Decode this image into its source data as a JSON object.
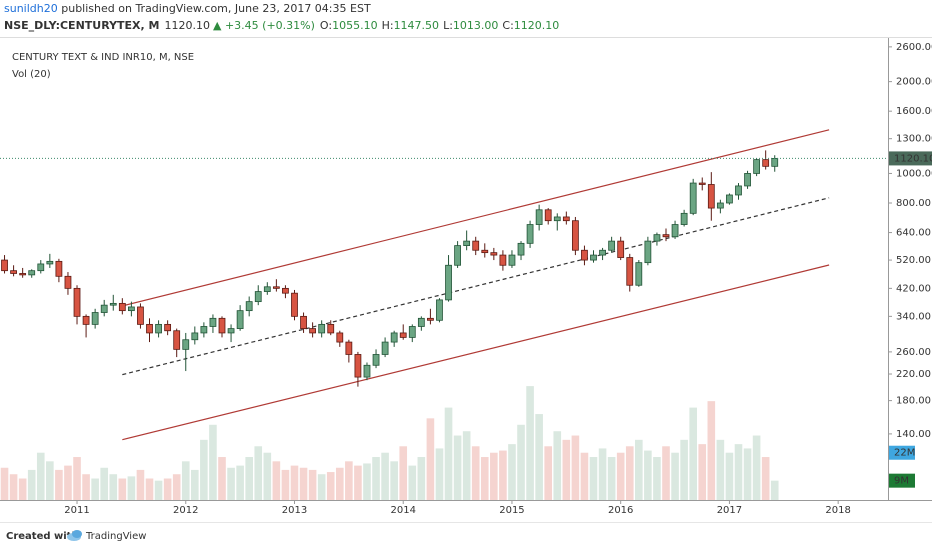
{
  "header": {
    "author": "sunildh20",
    "published": " published on TradingView.com, June 23, 2017 04:35 EST",
    "symbol": "NSE_DLY:CENTURYTEX, M",
    "last": "1120.10",
    "change": "▲ +3.45 (+0.31%)",
    "ohlc": [
      {
        "key": "O:",
        "label": "1055.10"
      },
      {
        "key": "H:",
        "label": "1147.50"
      },
      {
        "key": "L:",
        "label": "1013.00"
      },
      {
        "key": "C:",
        "label": "1120.10"
      }
    ]
  },
  "chart_data": {
    "type": "candlestick",
    "title": "CENTURY TEXT & IND INR10, M, NSE",
    "volume_title": "Vol (20)",
    "categories": [
      null,
      null,
      null,
      null,
      null,
      null,
      null,
      null,
      "2011",
      null,
      null,
      null,
      null,
      null,
      null,
      null,
      null,
      null,
      null,
      null,
      "2012",
      null,
      null,
      null,
      null,
      null,
      null,
      null,
      null,
      null,
      null,
      null,
      "2013",
      null,
      null,
      null,
      null,
      null,
      null,
      null,
      null,
      null,
      null,
      null,
      "2014",
      null,
      null,
      null,
      null,
      null,
      null,
      null,
      null,
      null,
      null,
      null,
      "2015",
      null,
      null,
      null,
      null,
      null,
      null,
      null,
      null,
      null,
      null,
      null,
      "2016",
      null,
      null,
      null,
      null,
      null,
      null,
      null,
      null,
      null,
      null,
      null,
      "2017",
      null,
      null,
      null,
      null,
      null,
      null,
      null,
      null,
      null,
      null,
      null,
      "2018",
      null,
      null,
      null,
      null,
      null
    ],
    "open": [
      520,
      480,
      470,
      465,
      480,
      505,
      515,
      460,
      420,
      340,
      320,
      350,
      370,
      375,
      355,
      365,
      320,
      300,
      320,
      305,
      265,
      285,
      300,
      315,
      335,
      300,
      310,
      355,
      380,
      410,
      425,
      420,
      405,
      340,
      310,
      300,
      320,
      300,
      280,
      255,
      215,
      235,
      255,
      280,
      300,
      290,
      315,
      335,
      330,
      385,
      500,
      580,
      600,
      560,
      550,
      540,
      500,
      540,
      590,
      680,
      760,
      700,
      720,
      700,
      560,
      520,
      540,
      560,
      600,
      530,
      430,
      510,
      600,
      630,
      620,
      680,
      740,
      930,
      920,
      770,
      800,
      850,
      910,
      1000,
      1110,
      1055.1,
      null,
      null,
      null,
      null,
      null,
      null,
      null,
      null,
      null,
      null,
      null,
      null
    ],
    "high": [
      540,
      500,
      490,
      485,
      520,
      545,
      525,
      475,
      430,
      345,
      360,
      385,
      400,
      390,
      380,
      375,
      335,
      330,
      330,
      310,
      300,
      315,
      325,
      345,
      340,
      320,
      370,
      395,
      430,
      440,
      450,
      430,
      415,
      350,
      325,
      330,
      330,
      305,
      285,
      260,
      240,
      265,
      290,
      305,
      320,
      320,
      340,
      360,
      390,
      540,
      600,
      650,
      620,
      590,
      570,
      560,
      560,
      600,
      700,
      790,
      770,
      740,
      750,
      720,
      580,
      560,
      570,
      620,
      620,
      545,
      520,
      620,
      640,
      660,
      700,
      760,
      960,
      970,
      1010,
      820,
      860,
      930,
      1020,
      1120,
      1190,
      1147.5,
      null,
      null,
      null,
      null,
      null,
      null,
      null,
      null,
      null,
      null,
      null,
      null
    ],
    "low": [
      470,
      460,
      455,
      455,
      470,
      490,
      440,
      400,
      320,
      290,
      310,
      340,
      355,
      345,
      340,
      310,
      280,
      290,
      295,
      250,
      225,
      275,
      290,
      300,
      290,
      280,
      305,
      340,
      370,
      400,
      410,
      390,
      330,
      300,
      290,
      290,
      295,
      270,
      240,
      200,
      210,
      230,
      250,
      270,
      285,
      280,
      305,
      320,
      325,
      380,
      490,
      560,
      540,
      530,
      520,
      480,
      490,
      520,
      570,
      650,
      680,
      650,
      680,
      540,
      500,
      510,
      520,
      550,
      520,
      410,
      425,
      500,
      580,
      600,
      610,
      670,
      730,
      880,
      700,
      740,
      790,
      820,
      890,
      980,
      1030,
      1013,
      null,
      null,
      null,
      null,
      null,
      null,
      null,
      null,
      null,
      null,
      null,
      null
    ],
    "close": [
      480,
      470,
      465,
      480,
      505,
      515,
      460,
      420,
      340,
      320,
      350,
      370,
      375,
      355,
      365,
      320,
      300,
      320,
      305,
      265,
      285,
      300,
      315,
      335,
      300,
      310,
      355,
      380,
      410,
      425,
      420,
      405,
      340,
      310,
      300,
      320,
      300,
      280,
      255,
      215,
      235,
      255,
      280,
      300,
      290,
      315,
      335,
      330,
      385,
      500,
      580,
      600,
      560,
      550,
      540,
      500,
      540,
      590,
      680,
      760,
      700,
      720,
      700,
      560,
      520,
      540,
      560,
      600,
      530,
      430,
      510,
      600,
      630,
      620,
      680,
      740,
      930,
      920,
      770,
      800,
      850,
      910,
      1000,
      1110,
      1055.1,
      1120.1,
      null,
      null,
      null,
      null,
      null,
      null,
      null,
      null,
      null,
      null,
      null,
      null
    ],
    "volume": [
      15,
      12,
      10,
      14,
      22,
      18,
      14,
      16,
      20,
      12,
      10,
      15,
      12,
      10,
      11,
      14,
      10,
      9,
      10,
      12,
      18,
      14,
      28,
      35,
      20,
      15,
      16,
      20,
      25,
      22,
      18,
      14,
      16,
      15,
      14,
      12,
      13,
      15,
      18,
      16,
      17,
      20,
      22,
      18,
      25,
      16,
      20,
      38,
      24,
      43,
      30,
      32,
      25,
      20,
      22,
      23,
      26,
      35,
      53,
      40,
      25,
      32,
      28,
      30,
      22,
      20,
      24,
      20,
      22,
      25,
      28,
      23,
      20,
      25,
      22,
      28,
      43,
      26,
      46,
      28,
      22,
      26,
      24,
      30,
      20,
      9,
      null,
      null,
      null,
      null,
      null,
      null,
      null,
      null,
      null,
      null,
      null,
      null
    ],
    "up_color": "#6ba583",
    "down_color": "#d75442",
    "up_border": "#225437",
    "down_border": "#5b1a13",
    "log_scale": true,
    "ylim": [
      85,
      2780
    ],
    "yticks": [
      {
        "value": 2600,
        "label": "2600.00"
      },
      {
        "value": 2000,
        "label": "2000.00"
      },
      {
        "value": 1600,
        "label": "1600.00"
      },
      {
        "value": 1300,
        "label": "1300.00"
      },
      {
        "value": 1000,
        "label": "1000.00"
      },
      {
        "value": 800,
        "label": "800.00"
      },
      {
        "value": 640,
        "label": "640.00"
      },
      {
        "value": 520,
        "label": "520.00"
      },
      {
        "value": 420,
        "label": "420.00"
      },
      {
        "value": 340,
        "label": "340.00"
      },
      {
        "value": 260,
        "label": "260.00"
      },
      {
        "value": 220,
        "label": "220.00"
      },
      {
        "value": 180,
        "label": "180.00"
      },
      {
        "value": 140,
        "label": "140.00"
      }
    ],
    "volume_ylim": [
      0,
      215
    ],
    "last_price": {
      "value": 1120.1,
      "label": "1120.10",
      "color": "#4a6a5a"
    },
    "volume_tags": [
      {
        "value": 22,
        "label": "22M",
        "color": "#3fa7e0"
      },
      {
        "value": 9,
        "label": "9M",
        "color": "#1d7a34"
      }
    ],
    "trendlines": [
      {
        "from": [
          13,
          368
        ],
        "to": [
          91,
          1390
        ],
        "color": "#b03a35",
        "dashed": false
      },
      {
        "from": [
          13,
          219
        ],
        "to": [
          91,
          832
        ],
        "color": "#333333",
        "dashed": true
      },
      {
        "from": [
          13,
          134
        ],
        "to": [
          91,
          501
        ],
        "color": "#b03a35",
        "dashed": false
      }
    ]
  },
  "footer": {
    "created": "Created with",
    "brand": "TradingView"
  }
}
